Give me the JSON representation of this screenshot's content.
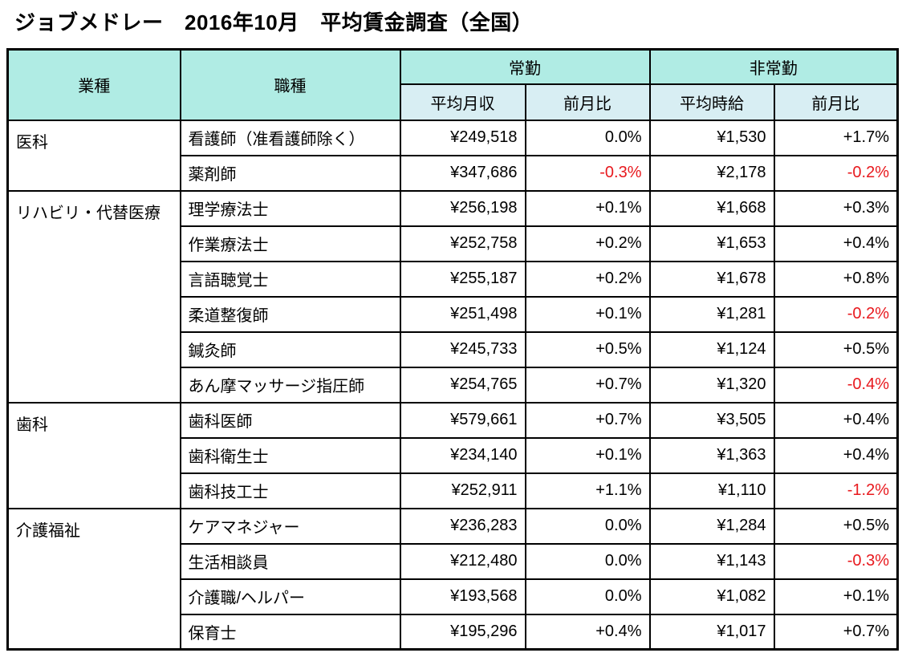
{
  "chart_data": {
    "type": "table",
    "title": "ジョブメドレー　2016年10月　平均賃金調査（全国）",
    "headers": {
      "industry": "業種",
      "occupation": "職種",
      "fulltime": "常勤",
      "parttime": "非常勤",
      "avg_monthly_income": "平均月収",
      "mom_fulltime": "前月比",
      "avg_hourly_wage": "平均時給",
      "mom_parttime": "前月比"
    },
    "colors": {
      "header_fill": "#b0ece4",
      "subheader_fill": "#d8eef3",
      "negative_text": "#e8191e",
      "border": "#000000"
    },
    "groups": [
      {
        "industry": "医科",
        "rows": [
          {
            "occupation": "看護師（准看護師除く）",
            "avg_monthly_income": "¥249,518",
            "mom_monthly": "0.0%",
            "avg_hourly_wage": "¥1,530",
            "mom_hourly": "+1.7%"
          },
          {
            "occupation": "薬剤師",
            "avg_monthly_income": "¥347,686",
            "mom_monthly": "-0.3%",
            "avg_hourly_wage": "¥2,178",
            "mom_hourly": "-0.2%"
          }
        ]
      },
      {
        "industry": "リハビリ・代替医療",
        "rows": [
          {
            "occupation": "理学療法士",
            "avg_monthly_income": "¥256,198",
            "mom_monthly": "+0.1%",
            "avg_hourly_wage": "¥1,668",
            "mom_hourly": "+0.3%"
          },
          {
            "occupation": "作業療法士",
            "avg_monthly_income": "¥252,758",
            "mom_monthly": "+0.2%",
            "avg_hourly_wage": "¥1,653",
            "mom_hourly": "+0.4%"
          },
          {
            "occupation": "言語聴覚士",
            "avg_monthly_income": "¥255,187",
            "mom_monthly": "+0.2%",
            "avg_hourly_wage": "¥1,678",
            "mom_hourly": "+0.8%"
          },
          {
            "occupation": "柔道整復師",
            "avg_monthly_income": "¥251,498",
            "mom_monthly": "+0.1%",
            "avg_hourly_wage": "¥1,281",
            "mom_hourly": "-0.2%"
          },
          {
            "occupation": "鍼灸師",
            "avg_monthly_income": "¥245,733",
            "mom_monthly": "+0.5%",
            "avg_hourly_wage": "¥1,124",
            "mom_hourly": "+0.5%"
          },
          {
            "occupation": "あん摩マッサージ指圧師",
            "avg_monthly_income": "¥254,765",
            "mom_monthly": "+0.7%",
            "avg_hourly_wage": "¥1,320",
            "mom_hourly": "-0.4%"
          }
        ]
      },
      {
        "industry": "歯科",
        "rows": [
          {
            "occupation": "歯科医師",
            "avg_monthly_income": "¥579,661",
            "mom_monthly": "+0.7%",
            "avg_hourly_wage": "¥3,505",
            "mom_hourly": "+0.4%"
          },
          {
            "occupation": "歯科衛生士",
            "avg_monthly_income": "¥234,140",
            "mom_monthly": "+0.1%",
            "avg_hourly_wage": "¥1,363",
            "mom_hourly": "+0.4%"
          },
          {
            "occupation": "歯科技工士",
            "avg_monthly_income": "¥252,911",
            "mom_monthly": "+1.1%",
            "avg_hourly_wage": "¥1,110",
            "mom_hourly": "-1.2%"
          }
        ]
      },
      {
        "industry": "介護福祉",
        "rows": [
          {
            "occupation": "ケアマネジャー",
            "avg_monthly_income": "¥236,283",
            "mom_monthly": "0.0%",
            "avg_hourly_wage": "¥1,284",
            "mom_hourly": "+0.5%"
          },
          {
            "occupation": "生活相談員",
            "avg_monthly_income": "¥212,480",
            "mom_monthly": "0.0%",
            "avg_hourly_wage": "¥1,143",
            "mom_hourly": "-0.3%"
          },
          {
            "occupation": "介護職/ヘルパー",
            "avg_monthly_income": "¥193,568",
            "mom_monthly": "0.0%",
            "avg_hourly_wage": "¥1,082",
            "mom_hourly": "+0.1%"
          },
          {
            "occupation": "保育士",
            "avg_monthly_income": "¥195,296",
            "mom_monthly": "+0.4%",
            "avg_hourly_wage": "¥1,017",
            "mom_hourly": "+0.7%"
          }
        ]
      }
    ]
  }
}
